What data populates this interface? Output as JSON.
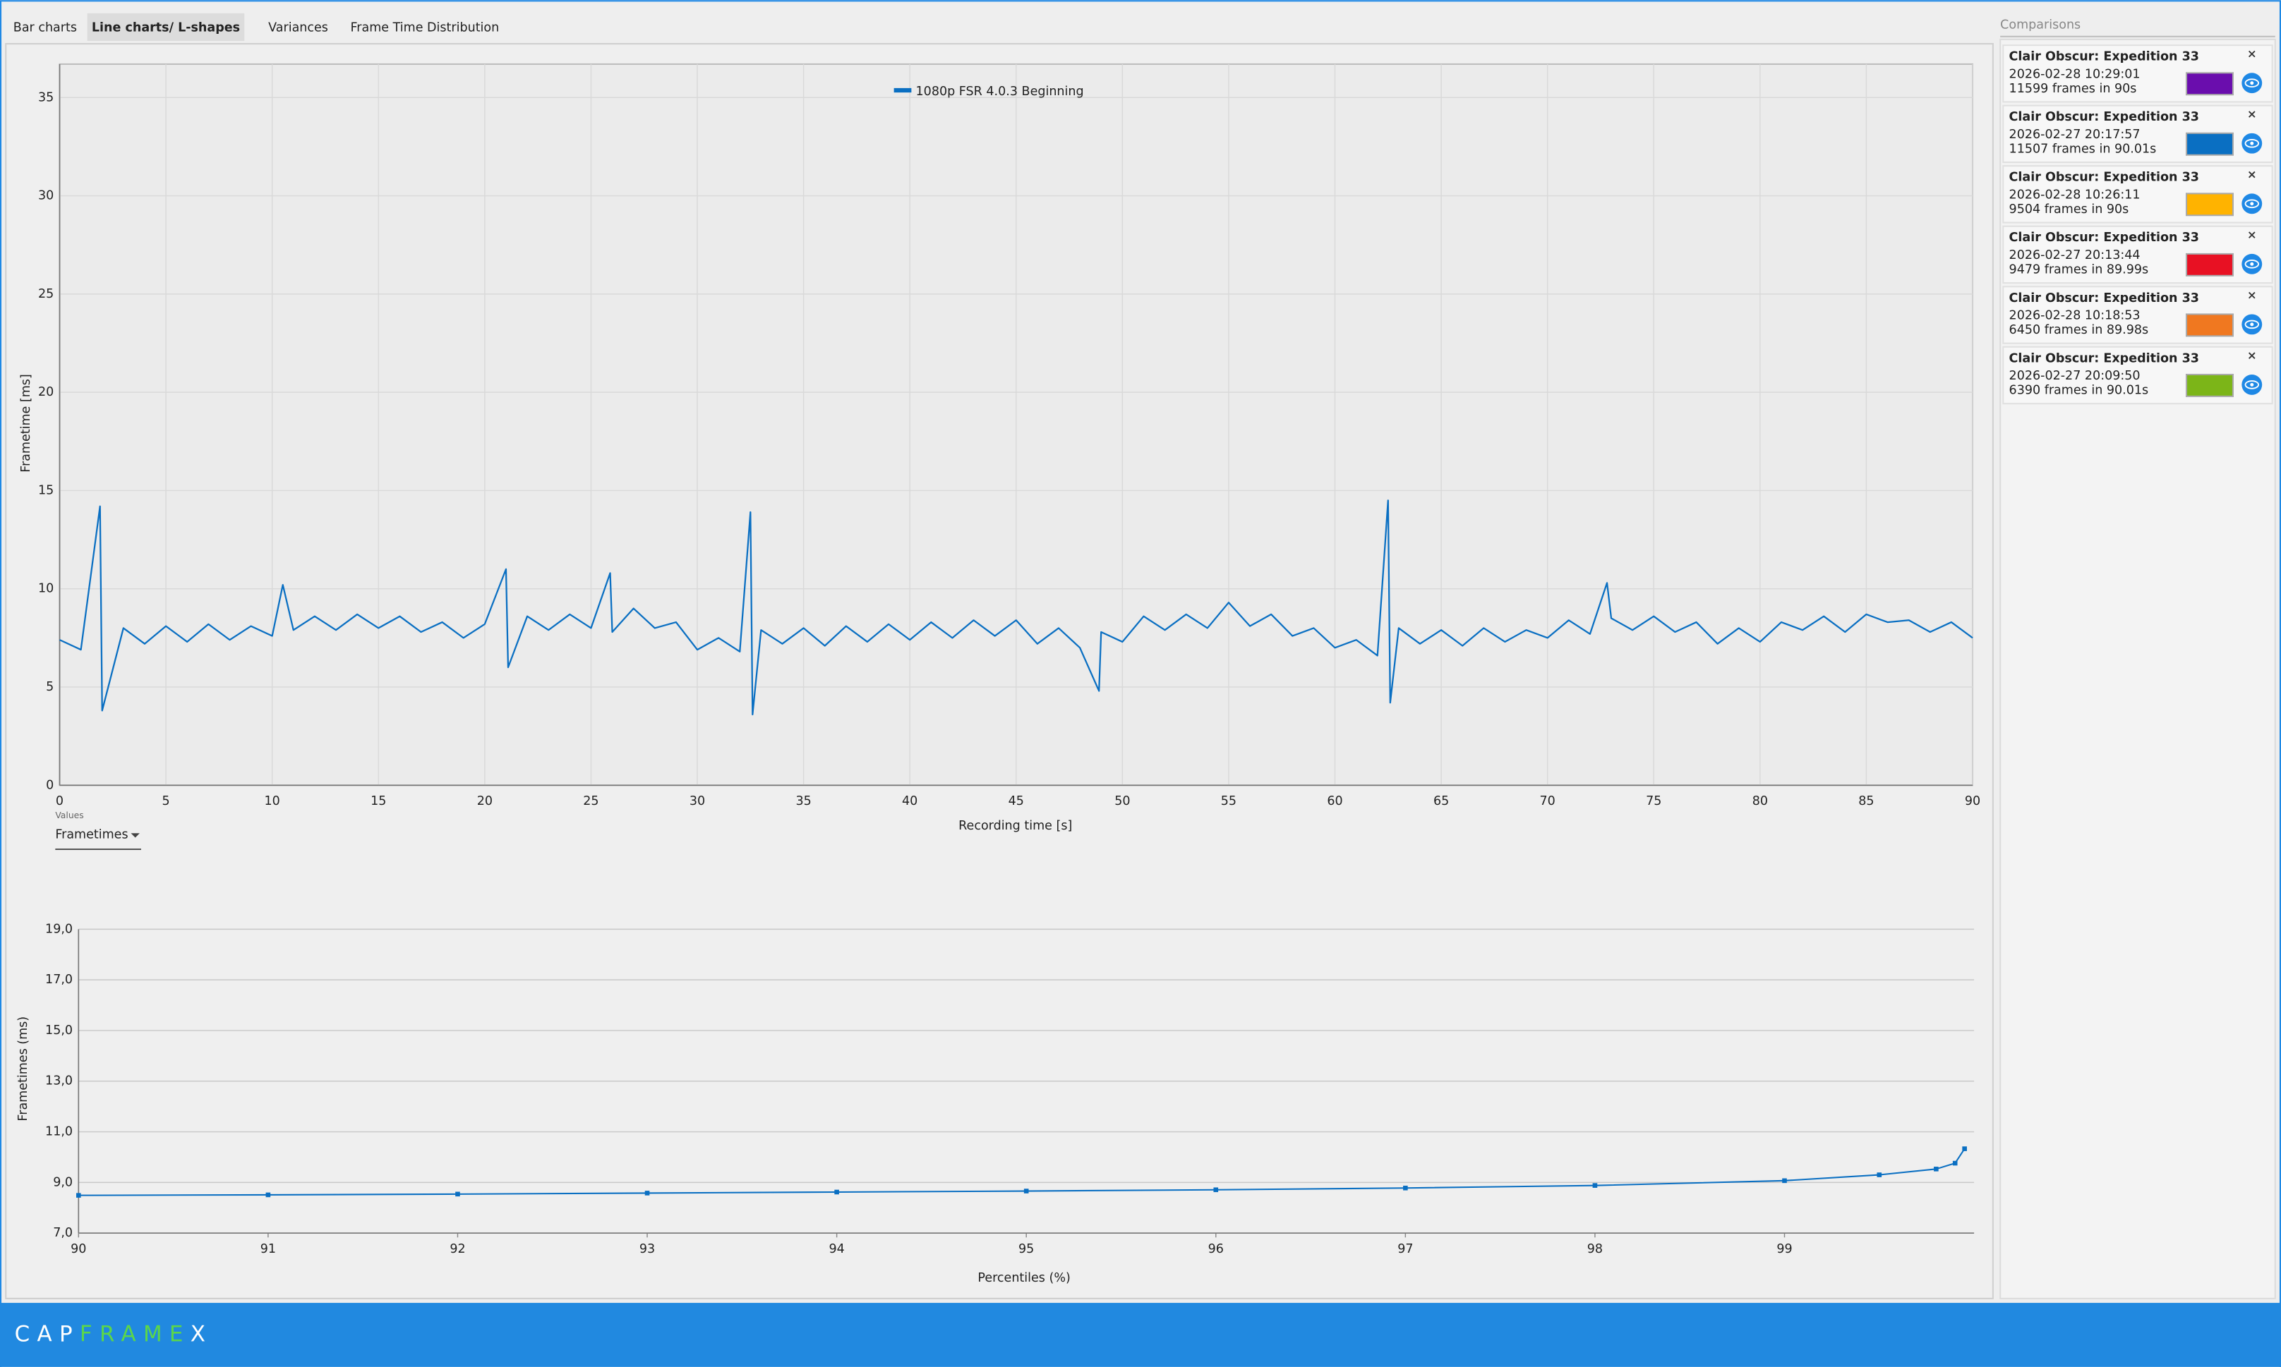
{
  "tabs": [
    "Bar charts",
    "Line charts/ L-shapes",
    "Variances",
    "Frame Time Distribution"
  ],
  "active_tab": 1,
  "values_label": "Values",
  "dropdown": "Frametimes",
  "chart_data": [
    {
      "type": "line",
      "legend": "top",
      "grid": true,
      "xlabel": "Recording time [s]",
      "ylabel": "Frametime [ms]",
      "xlim": [
        0,
        90
      ],
      "xticks": [
        0,
        5,
        10,
        15,
        20,
        25,
        30,
        35,
        40,
        45,
        50,
        55,
        60,
        65,
        70,
        75,
        80,
        85,
        90
      ],
      "ylim": [
        0,
        36.7
      ],
      "yticks": [
        0,
        5,
        10,
        15,
        20,
        25,
        30,
        35
      ],
      "x": [
        0,
        1,
        1.9,
        2,
        3,
        4,
        5,
        6,
        7,
        8,
        9,
        10,
        10.5,
        11,
        12,
        13,
        14,
        15,
        16,
        17,
        18,
        19,
        20,
        21,
        21.1,
        22,
        23,
        24,
        25,
        25.9,
        26,
        27,
        28,
        29,
        30,
        31,
        32,
        32.5,
        32.6,
        33,
        34,
        35,
        36,
        37,
        38,
        39,
        40,
        41,
        42,
        43,
        44,
        45,
        46,
        47,
        48,
        48.9,
        49,
        50,
        51,
        52,
        53,
        54,
        55,
        56,
        57,
        58,
        59,
        60,
        61,
        62,
        62.5,
        62.6,
        63,
        64,
        65,
        66,
        67,
        68,
        69,
        70,
        71,
        72,
        72.8,
        73,
        74,
        75,
        76,
        77,
        78,
        79,
        80,
        81,
        82,
        83,
        84,
        85,
        86,
        87,
        88,
        89,
        90
      ],
      "series": [
        {
          "name": "1080p FSR 4.0.3 Beginning",
          "color": "#0a6fc2",
          "values": [
            7.4,
            6.9,
            14.2,
            3.8,
            8.0,
            7.2,
            8.1,
            7.3,
            8.2,
            7.4,
            8.1,
            7.6,
            10.2,
            7.9,
            8.6,
            7.9,
            8.7,
            8.0,
            8.6,
            7.8,
            8.3,
            7.5,
            8.2,
            11.0,
            6.0,
            8.6,
            7.9,
            8.7,
            8.0,
            10.8,
            7.8,
            9.0,
            8.0,
            8.3,
            6.9,
            7.5,
            6.8,
            13.9,
            3.6,
            7.9,
            7.2,
            8.0,
            7.1,
            8.1,
            7.3,
            8.2,
            7.4,
            8.3,
            7.5,
            8.4,
            7.6,
            8.4,
            7.2,
            8.0,
            7.0,
            4.8,
            7.8,
            7.3,
            8.6,
            7.9,
            8.7,
            8.0,
            9.3,
            8.1,
            8.7,
            7.6,
            8.0,
            7.0,
            7.4,
            6.6,
            14.5,
            4.2,
            8.0,
            7.2,
            7.9,
            7.1,
            8.0,
            7.3,
            7.9,
            7.5,
            8.4,
            7.7,
            10.3,
            8.5,
            7.9,
            8.6,
            7.8,
            8.3,
            7.2,
            8.0,
            7.3,
            8.3,
            7.9,
            8.6,
            7.8,
            8.7,
            8.3,
            8.4,
            7.8,
            8.3,
            7.5
          ]
        }
      ]
    },
    {
      "type": "line",
      "markers": true,
      "grid": "horizontal",
      "xlabel": "Percentiles (%)",
      "ylabel": "Frametimes (ms)",
      "xlim": [
        90,
        100
      ],
      "xticks": [
        90,
        91,
        92,
        93,
        94,
        95,
        96,
        97,
        98,
        99
      ],
      "ylim": [
        7,
        19
      ],
      "yticks": [
        {
          "value": 7,
          "label": "7,0"
        },
        {
          "value": 9,
          "label": "9,0"
        },
        {
          "value": 11,
          "label": "11,0"
        },
        {
          "value": 13,
          "label": "13,0"
        },
        {
          "value": 15,
          "label": "15,0"
        },
        {
          "value": 17,
          "label": "17,0"
        },
        {
          "value": 19,
          "label": "19,0"
        }
      ],
      "x": [
        90,
        91,
        92,
        93,
        94,
        95,
        96,
        97,
        98,
        99,
        99.5,
        99.8,
        99.9,
        99.95
      ],
      "series": [
        {
          "color": "#0a6fc2",
          "values": [
            8.49,
            8.51,
            8.54,
            8.58,
            8.62,
            8.66,
            8.71,
            8.78,
            8.88,
            9.07,
            9.3,
            9.53,
            9.76,
            10.33
          ]
        }
      ]
    }
  ],
  "comparisons": {
    "title": "Comparisons",
    "items": [
      {
        "game": "Clair Obscur: Expedition 33",
        "date": "2026-02-28 10:29:01",
        "frames": "11599 frames in 90s",
        "color": "#6a0dad"
      },
      {
        "game": "Clair Obscur: Expedition 33",
        "date": "2026-02-27 20:17:57",
        "frames": "11507 frames in 90.01s",
        "color": "#0a6fc2"
      },
      {
        "game": "Clair Obscur: Expedition 33",
        "date": "2026-02-28 10:26:11",
        "frames": "9504 frames in 90s",
        "color": "#ffb300"
      },
      {
        "game": "Clair Obscur: Expedition 33",
        "date": "2026-02-27 20:13:44",
        "frames": "9479 frames in 89.99s",
        "color": "#e81123"
      },
      {
        "game": "Clair Obscur: Expedition 33",
        "date": "2026-02-28 10:18:53",
        "frames": "6450 frames in 89.98s",
        "color": "#f07820"
      },
      {
        "game": "Clair Obscur: Expedition 33",
        "date": "2026-02-27 20:09:50",
        "frames": "6390 frames in 90.01s",
        "color": "#7cb518"
      }
    ]
  },
  "logo": [
    "CAP",
    "FRAME",
    "X"
  ]
}
